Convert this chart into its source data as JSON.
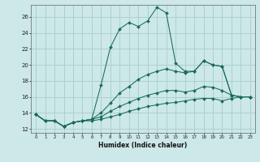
{
  "xlabel": "Humidex (Indice chaleur)",
  "bg_color": "#cce8e8",
  "grid_color": "#aacccc",
  "line_color": "#1a6b5a",
  "xlim": [
    -0.5,
    23.5
  ],
  "ylim": [
    11.5,
    27.5
  ],
  "xticks": [
    0,
    1,
    2,
    3,
    4,
    5,
    6,
    7,
    8,
    9,
    10,
    11,
    12,
    13,
    14,
    15,
    16,
    17,
    18,
    19,
    20,
    21,
    22,
    23
  ],
  "yticks": [
    12,
    14,
    16,
    18,
    20,
    22,
    24,
    26
  ],
  "series": [
    {
      "x": [
        0,
        1,
        2,
        3,
        4,
        5,
        6,
        7,
        8,
        9,
        10,
        11,
        12,
        13,
        14,
        15,
        16,
        17,
        18,
        19,
        20,
        21,
        22,
        23
      ],
      "y": [
        13.8,
        13.0,
        13.0,
        12.3,
        12.8,
        13.0,
        13.2,
        17.5,
        22.2,
        24.5,
        25.3,
        24.8,
        25.5,
        27.2,
        26.5,
        20.2,
        19.2,
        19.2,
        20.5,
        20.0,
        19.8,
        16.2,
        16.0,
        16.0
      ]
    },
    {
      "x": [
        0,
        1,
        2,
        3,
        4,
        5,
        6,
        7,
        8,
        9,
        10,
        11,
        12,
        13,
        14,
        15,
        16,
        17,
        18,
        19,
        20,
        21,
        22,
        23
      ],
      "y": [
        13.8,
        13.0,
        13.0,
        12.3,
        12.8,
        13.0,
        13.2,
        14.0,
        15.2,
        16.5,
        17.3,
        18.2,
        18.8,
        19.2,
        19.5,
        19.2,
        19.0,
        19.2,
        20.5,
        20.0,
        19.8,
        16.2,
        16.0,
        16.0
      ]
    },
    {
      "x": [
        0,
        1,
        2,
        3,
        4,
        5,
        6,
        7,
        8,
        9,
        10,
        11,
        12,
        13,
        14,
        15,
        16,
        17,
        18,
        19,
        20,
        21,
        22,
        23
      ],
      "y": [
        13.8,
        13.0,
        13.0,
        12.3,
        12.8,
        13.0,
        13.2,
        13.5,
        14.2,
        14.8,
        15.3,
        15.8,
        16.2,
        16.5,
        16.8,
        16.8,
        16.6,
        16.8,
        17.3,
        17.2,
        16.8,
        16.2,
        16.0,
        16.0
      ]
    },
    {
      "x": [
        0,
        1,
        2,
        3,
        4,
        5,
        6,
        7,
        8,
        9,
        10,
        11,
        12,
        13,
        14,
        15,
        16,
        17,
        18,
        19,
        20,
        21,
        22,
        23
      ],
      "y": [
        13.8,
        13.0,
        13.0,
        12.3,
        12.8,
        13.0,
        13.0,
        13.2,
        13.5,
        13.8,
        14.2,
        14.5,
        14.8,
        15.0,
        15.2,
        15.3,
        15.5,
        15.7,
        15.8,
        15.8,
        15.5,
        15.8,
        16.0,
        16.0
      ]
    }
  ]
}
